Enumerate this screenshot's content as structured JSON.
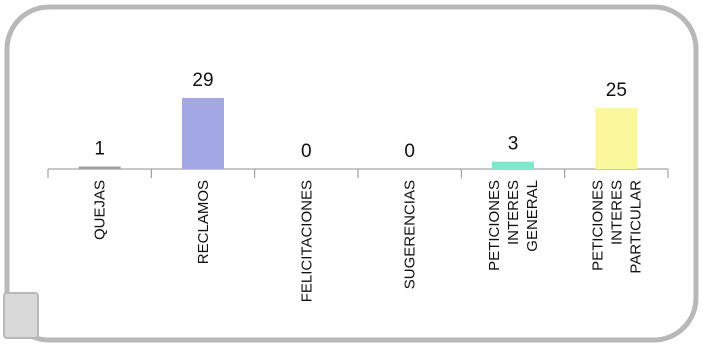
{
  "chart_data": {
    "type": "bar",
    "categories": [
      [
        "QUEJAS"
      ],
      [
        "RECLAMOS"
      ],
      [
        "FELICITACIONES"
      ],
      [
        "SUGERENCIAS"
      ],
      [
        "PETICIONES",
        "INTERES",
        "GENERAL"
      ],
      [
        "PETICIONES",
        "INTERES",
        "PARTICULAR"
      ]
    ],
    "values": [
      1,
      29,
      0,
      0,
      3,
      25
    ],
    "data_labels": [
      "1",
      "29",
      "0",
      "0",
      "3",
      "25"
    ],
    "colors": [
      "#9e9e9e",
      "#a3a7e3",
      "#a3a7e3",
      "#a3a7e3",
      "#7fe8cf",
      "#fbf79c"
    ],
    "ylim": [
      0,
      29
    ],
    "grid": false,
    "legend": "none",
    "frame": {
      "border_color": "#b8b8b8",
      "tab_color": "#d9d9d9"
    }
  }
}
